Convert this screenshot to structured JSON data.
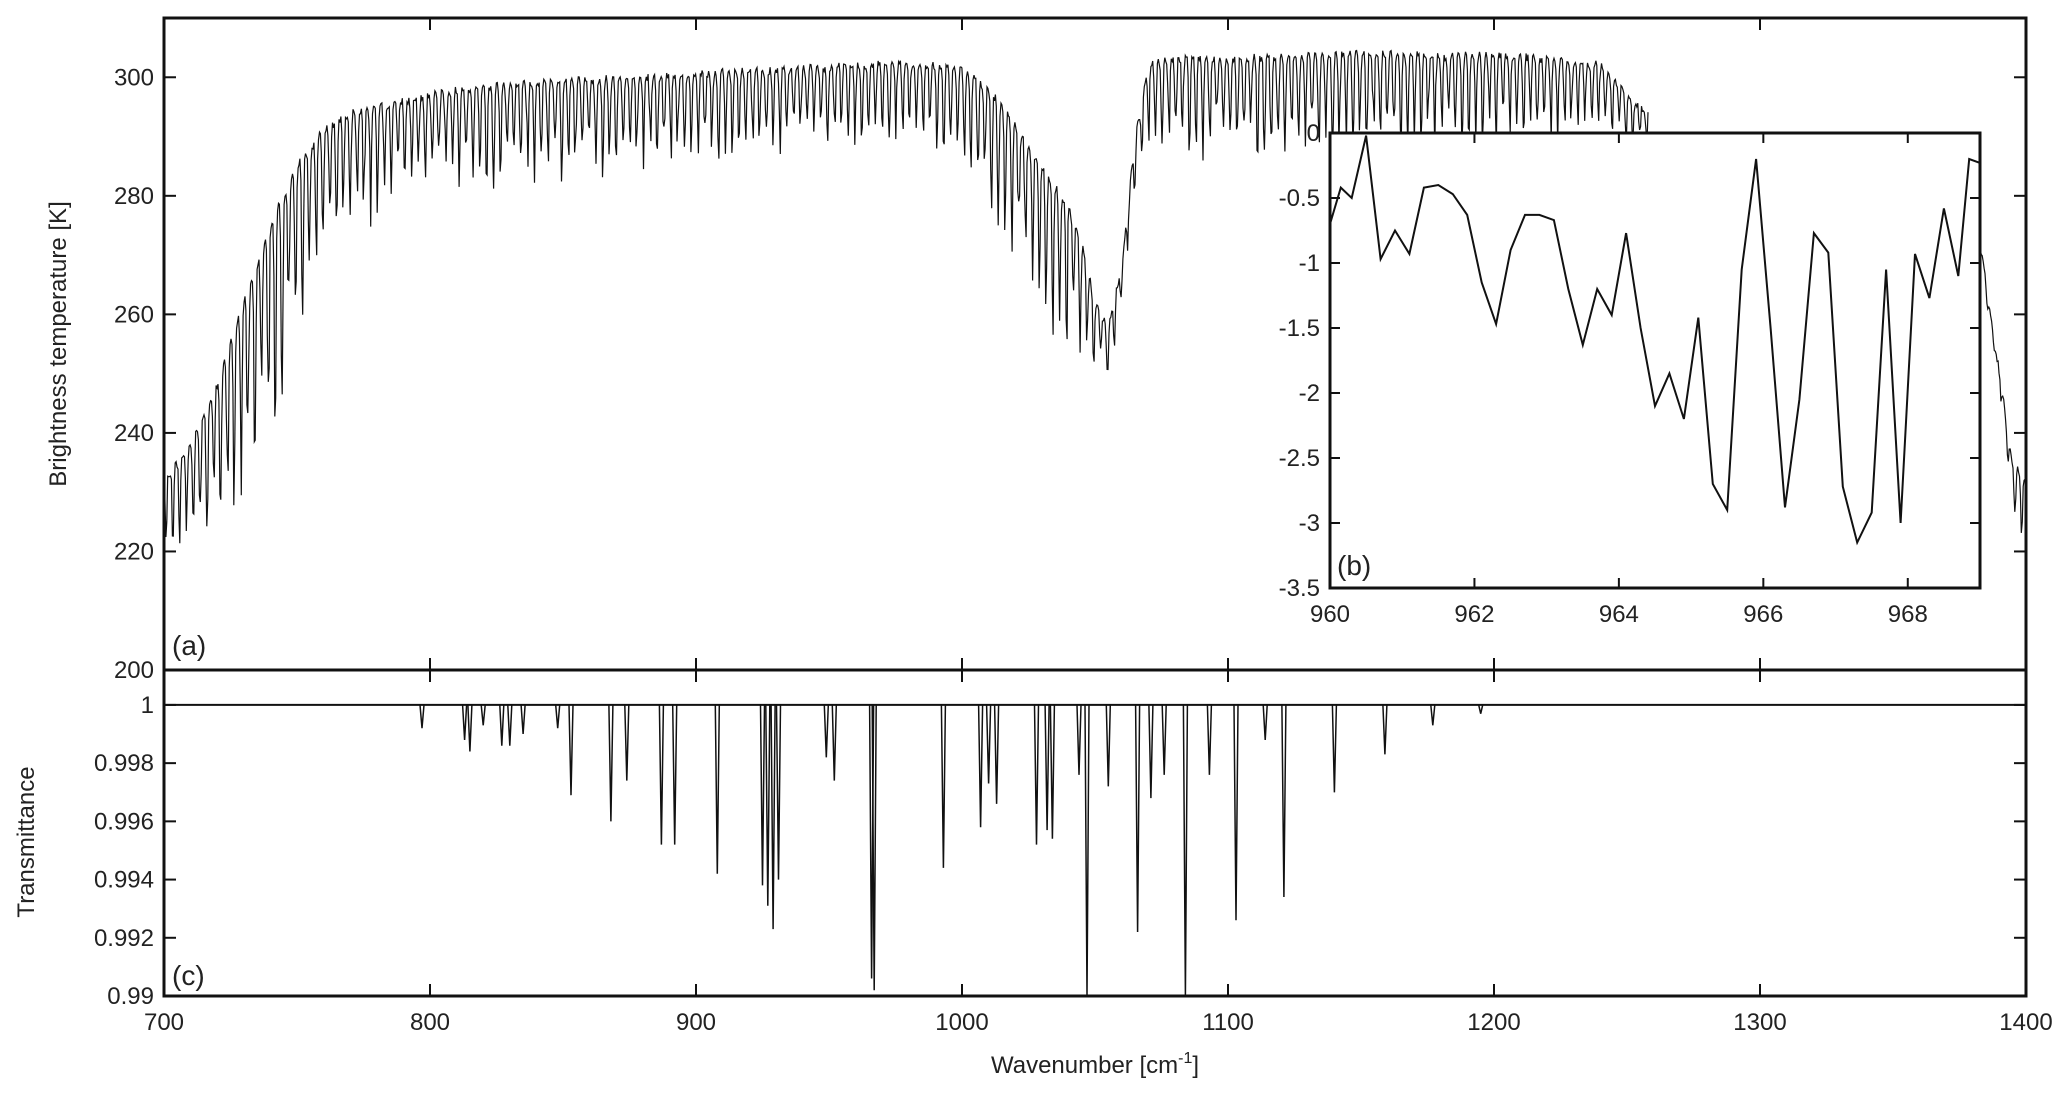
{
  "figure": {
    "xlabel": "Wavenumber [cm",
    "xlabel_sup": "-1",
    "xlabel_end": "]"
  },
  "chart_data": [
    {
      "panel": "(a)",
      "type": "line",
      "xlabel": "Wavenumber [cm-1]",
      "ylabel": "Brightness temperature [K]",
      "xlim": [
        700,
        1400
      ],
      "ylim": [
        200,
        310
      ],
      "xticks": [
        "700",
        "800",
        "900",
        "1000",
        "1100",
        "1200",
        "1300",
        "1400"
      ],
      "yticks": [
        "200",
        "220",
        "240",
        "260",
        "280",
        "300"
      ],
      "grid": false,
      "series": [
        {
          "x": [
            700,
            710,
            720,
            730,
            740,
            750,
            760,
            770,
            780,
            790,
            800,
            820,
            840,
            860,
            880,
            900,
            920,
            940,
            960,
            980,
            1000,
            1010,
            1020,
            1030,
            1040,
            1045,
            1050,
            1055,
            1060,
            1065,
            1070,
            1080,
            1100,
            1120,
            1140,
            1160,
            1180,
            1200,
            1220,
            1240,
            1257,
            1280,
            1380,
            1385,
            1390,
            1395,
            1400
          ],
          "y": [
            232,
            238,
            248,
            262,
            275,
            285,
            291,
            294,
            295,
            296,
            297,
            298.5,
            299,
            299.5,
            300,
            300.5,
            301,
            301.5,
            302,
            302.5,
            301.5,
            298,
            292,
            285,
            278,
            272,
            262,
            258,
            268,
            290,
            302,
            303,
            303,
            303.5,
            304,
            304,
            303.5,
            304,
            303,
            302,
            294,
            292,
            285,
            265,
            250,
            235,
            232
          ],
          "min_envelope": [
            220,
            219,
            219,
            222,
            232,
            255,
            268,
            272,
            275,
            278,
            279,
            280,
            281,
            282,
            283,
            284,
            285,
            286,
            287,
            288,
            285,
            276,
            268,
            258,
            250,
            250,
            248,
            248,
            260,
            278,
            285,
            287,
            284,
            282,
            284,
            286,
            287,
            288,
            289,
            290,
            288,
            290,
            280,
            262,
            248,
            225,
            220
          ]
        }
      ]
    },
    {
      "panel": "(b)",
      "type": "line",
      "xlim": [
        960,
        969
      ],
      "ylim": [
        -3.5,
        0
      ],
      "xticks": [
        "960",
        "962",
        "964",
        "966",
        "968"
      ],
      "yticks": [
        "0",
        "-0.5",
        "-1",
        "-1.5",
        "-2",
        "-2.5",
        "-3",
        "-3.5"
      ],
      "grid": false,
      "series": [
        {
          "x": [
            960.0,
            960.15,
            960.3,
            960.5,
            960.7,
            960.9,
            961.1,
            961.3,
            961.5,
            961.7,
            961.9,
            962.1,
            962.3,
            962.5,
            962.7,
            962.9,
            963.1,
            963.3,
            963.5,
            963.7,
            963.9,
            964.1,
            964.3,
            964.5,
            964.7,
            964.9,
            965.1,
            965.3,
            965.5,
            965.7,
            965.9,
            966.1,
            966.3,
            966.5,
            966.7,
            966.9,
            967.1,
            967.3,
            967.5,
            967.7,
            967.9,
            968.1,
            968.3,
            968.5,
            968.7,
            968.85,
            969.0
          ],
          "y": [
            -0.7,
            -0.42,
            -0.5,
            -0.02,
            -0.97,
            -0.75,
            -0.93,
            -0.42,
            -0.4,
            -0.47,
            -0.63,
            -1.15,
            -1.47,
            -0.9,
            -0.63,
            -0.63,
            -0.67,
            -1.2,
            -1.63,
            -1.2,
            -1.4,
            -0.77,
            -1.5,
            -2.1,
            -1.85,
            -2.2,
            -1.42,
            -2.7,
            -2.9,
            -1.05,
            -0.2,
            -1.5,
            -2.88,
            -2.05,
            -0.77,
            -0.92,
            -2.72,
            -3.15,
            -2.92,
            -1.05,
            -3.0,
            -0.93,
            -1.27,
            -0.58,
            -1.1,
            -0.2,
            -0.23
          ]
        }
      ]
    },
    {
      "panel": "(c)",
      "type": "line",
      "ylabel": "Transmittance",
      "xlim": [
        700,
        1400
      ],
      "ylim": [
        0.99,
        1.0012
      ],
      "xticks": [
        "700",
        "800",
        "900",
        "1000",
        "1100",
        "1200",
        "1300",
        "1400"
      ],
      "yticks": [
        "0.99",
        "0.992",
        "0.994",
        "0.996",
        "0.998",
        "1"
      ],
      "grid": false,
      "baseline": 1.0,
      "series": [
        {
          "lines_x": [
            797,
            813,
            815,
            820,
            827,
            830,
            835,
            848,
            853,
            868,
            874,
            887,
            892,
            908,
            925,
            927,
            929,
            931,
            949,
            952,
            966,
            967,
            993,
            1007,
            1010,
            1013,
            1028,
            1032,
            1034,
            1044,
            1047,
            1055,
            1066,
            1071,
            1076,
            1084,
            1093,
            1103,
            1114,
            1121,
            1140,
            1159,
            1177,
            1195
          ],
          "lines_depth": [
            0.9992,
            0.9988,
            0.9984,
            0.9993,
            0.9986,
            0.9986,
            0.999,
            0.9992,
            0.9969,
            0.996,
            0.9974,
            0.9952,
            0.9952,
            0.9942,
            0.9938,
            0.9931,
            0.9923,
            0.994,
            0.9982,
            0.9974,
            0.9906,
            0.9902,
            0.9944,
            0.9958,
            0.9973,
            0.9966,
            0.9952,
            0.9957,
            0.9954,
            0.9976,
            0.989,
            0.9972,
            0.9922,
            0.9968,
            0.9976,
            0.989,
            0.9976,
            0.9926,
            0.9988,
            0.9934,
            0.997,
            0.9983,
            0.9993,
            0.9997
          ]
        }
      ]
    }
  ]
}
